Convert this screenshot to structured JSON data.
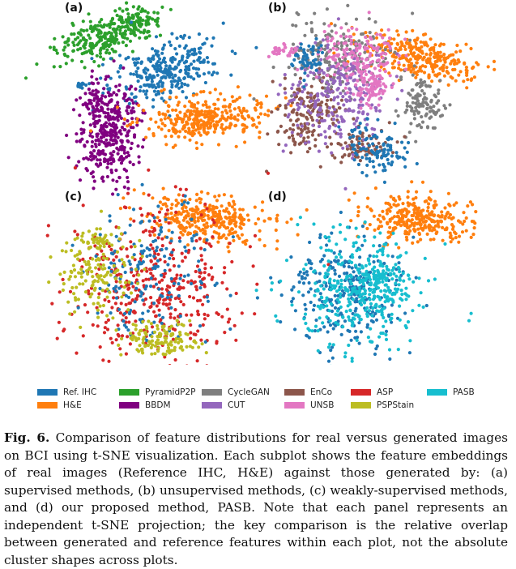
{
  "panels": [
    {
      "label": "(a)",
      "groups": [
        "PyramidP2P",
        "Ref. IHC",
        "BBDM",
        "H&E"
      ]
    },
    {
      "label": "(b)",
      "groups": [
        "H&E",
        "CycleGAN",
        "EnCo",
        "CUT",
        "UNSB",
        "Ref. IHC"
      ]
    },
    {
      "label": "(c)",
      "groups": [
        "H&E",
        "ASP",
        "Ref. IHC",
        "PSPStain"
      ]
    },
    {
      "label": "(d)",
      "groups": [
        "H&E",
        "Ref. IHC",
        "PASB"
      ]
    }
  ],
  "legend": {
    "items": [
      {
        "label": "Ref. IHC",
        "color": "#1f77b4"
      },
      {
        "label": "H&E",
        "color": "#ff7f0e"
      },
      {
        "label": "PyramidP2P",
        "color": "#2ca02c"
      },
      {
        "label": "BBDM",
        "color": "#800080"
      },
      {
        "label": "CycleGAN",
        "color": "#7f7f7f"
      },
      {
        "label": "CUT",
        "color": "#9467bd"
      },
      {
        "label": "EnCo",
        "color": "#8c564b"
      },
      {
        "label": "UNSB",
        "color": "#e377c2"
      },
      {
        "label": "ASP",
        "color": "#d62728"
      },
      {
        "label": "PSPStain",
        "color": "#bcbd22"
      },
      {
        "label": "PASB",
        "color": "#17becf"
      }
    ]
  },
  "caption": {
    "label": "Fig. 6.",
    "text": "Comparison of feature distributions for real versus generated images on BCI using t-SNE visualization. Each subplot shows the feature embeddings of real images (Reference IHC, H&E) against those generated by: (a) supervised methods, (b) unsupervised methods, (c) weakly-supervised methods, and (d) our proposed method, PASB. Note that each panel represents an independent t-SNE projection; the key comparison is the relative overlap between generated and reference features within each plot, not the absolute cluster shapes across plots."
  }
}
